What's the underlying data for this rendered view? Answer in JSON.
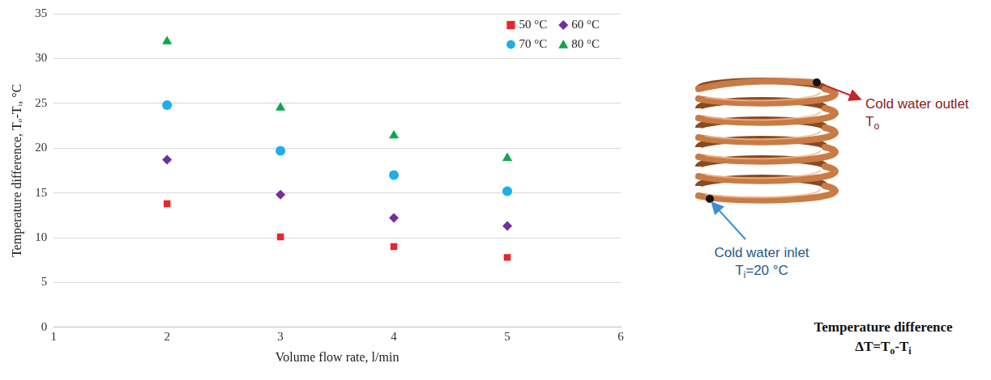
{
  "chart_data": {
    "type": "scatter",
    "x_label": "Volume flow rate, l/min",
    "y_label": "Temperature difference, Tₒ-Tᵢ, °C",
    "xlim": [
      1,
      6
    ],
    "xticks": [
      1,
      2,
      3,
      4,
      5,
      6
    ],
    "ylim": [
      0,
      35
    ],
    "yticks": [
      0,
      5,
      10,
      15,
      20,
      25,
      30,
      35
    ],
    "grid": "y",
    "legend": "top-right",
    "x": [
      2,
      3,
      4,
      5
    ],
    "series": [
      {
        "name": "50 °C",
        "color": "#e8262b",
        "marker": "square",
        "values": [
          13.8,
          10.1,
          9.0,
          7.8
        ]
      },
      {
        "name": "60 °C",
        "color": "#7030a0",
        "marker": "diamond",
        "values": [
          18.7,
          14.8,
          12.2,
          11.3
        ]
      },
      {
        "name": "70 °C",
        "color": "#1eaee8",
        "marker": "circle",
        "values": [
          24.8,
          19.7,
          17.0,
          15.2
        ]
      },
      {
        "name": "80 °C",
        "color": "#12a54a",
        "marker": "triangle",
        "values": [
          31.9,
          24.5,
          21.4,
          18.9
        ]
      }
    ]
  },
  "diagram": {
    "outlet": {
      "label": "Cold water outlet",
      "variable": "T",
      "subscript": "o"
    },
    "inlet": {
      "label": "Cold water inlet",
      "variable": "T",
      "subscript": "i",
      "value": "=20 °C"
    },
    "caption": {
      "title": "Temperature difference",
      "formula": [
        {
          "text": "ΔT=T",
          "sub": false
        },
        {
          "text": "o",
          "sub": true
        },
        {
          "text": "-T",
          "sub": false
        },
        {
          "text": "i",
          "sub": true
        }
      ]
    }
  }
}
